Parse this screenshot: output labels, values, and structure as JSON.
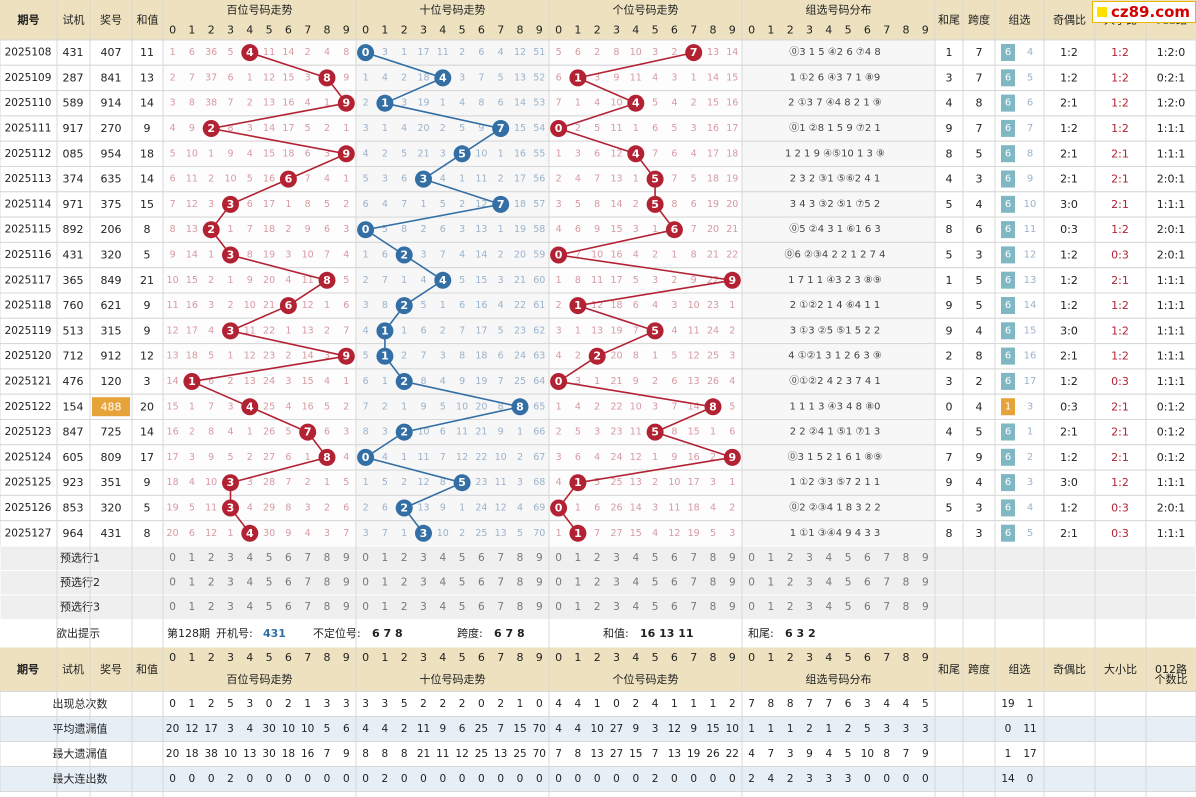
{
  "colors": {
    "red": "#b22233",
    "blue": "#336fa5",
    "hdr": "#ede1bf",
    "bdr": "#d8d8d8",
    "orange": "#e6a33a",
    "teal": "#7fb7c2",
    "gray": "#e9e9e9"
  },
  "watermark": "cz89.com",
  "headers": {
    "period": "期号",
    "trial": "试机",
    "prize": "奖号",
    "sum": "和值",
    "hundreds": "百位号码走势",
    "tens": "十位号码走势",
    "units": "个位号码走势",
    "group_dist": "组选号码分布",
    "sum_tail": "和尾",
    "span": "跨度",
    "group": "组选",
    "odd_even": "奇偶比",
    "big_small": "大小比",
    "r012": "012路",
    "r012b": "个数比"
  },
  "digits": [
    "0",
    "1",
    "2",
    "3",
    "4",
    "5",
    "6",
    "7",
    "8",
    "9"
  ],
  "rows": [
    {
      "p": "2025108",
      "t": "431",
      "n": "407",
      "s": "11",
      "h": [
        1,
        6,
        36,
        5,
        null,
        11,
        14,
        2,
        4,
        8
      ],
      "te": [
        null,
        3,
        1,
        17,
        11,
        2,
        6,
        4,
        12,
        51
      ],
      "u": [
        5,
        6,
        2,
        8,
        10,
        3,
        2,
        null,
        13,
        14
      ],
      "g": "⓪3 1 5 ④2 6 ⑦4 8",
      "st": "1",
      "sp": "7",
      "gc": "6",
      "gv": "4",
      "oe": "1:2",
      "bs": "1:2",
      "r": "1:2:0"
    },
    {
      "p": "2025109",
      "t": "287",
      "n": "841",
      "s": "13",
      "h": [
        2,
        7,
        37,
        6,
        1,
        12,
        15,
        3,
        null,
        9
      ],
      "te": [
        1,
        4,
        2,
        18,
        12,
        3,
        7,
        5,
        13,
        52
      ],
      "u": [
        6,
        null,
        3,
        9,
        11,
        4,
        3,
        1,
        14,
        15
      ],
      "g": "1 ①2 6 ④3 7 1 ⑧9",
      "st": "3",
      "sp": "7",
      "gc": "6",
      "gv": "5",
      "oe": "1:2",
      "bs": "1:2",
      "r": "0:2:1"
    },
    {
      "p": "2025110",
      "t": "589",
      "n": "914",
      "s": "14",
      "h": [
        3,
        8,
        38,
        7,
        2,
        13,
        16,
        4,
        1,
        null
      ],
      "te": [
        2,
        null,
        3,
        19,
        1,
        4,
        8,
        6,
        14,
        53
      ],
      "u": [
        7,
        1,
        4,
        10,
        null,
        5,
        4,
        2,
        15,
        16
      ],
      "g": "2 ①3 7 ④4 8 2 1 ⑨",
      "st": "4",
      "sp": "8",
      "gc": "6",
      "gv": "6",
      "oe": "2:1",
      "bs": "1:2",
      "r": "1:2:0"
    },
    {
      "p": "2025111",
      "t": "917",
      "n": "270",
      "s": "9",
      "h": [
        4,
        9,
        null,
        8,
        3,
        14,
        17,
        5,
        2,
        1
      ],
      "te": [
        3,
        1,
        4,
        20,
        2,
        5,
        9,
        null,
        15,
        54
      ],
      "u": [
        null,
        2,
        5,
        11,
        1,
        6,
        5,
        3,
        16,
        17
      ],
      "g": "⓪1 ②8 1 5 9 ⑦2 1",
      "st": "9",
      "sp": "7",
      "gc": "6",
      "gv": "7",
      "oe": "1:2",
      "bs": "1:2",
      "r": "1:1:1"
    },
    {
      "p": "2025112",
      "t": "085",
      "n": "954",
      "s": "18",
      "h": [
        5,
        10,
        1,
        9,
        4,
        15,
        18,
        6,
        3,
        null
      ],
      "te": [
        4,
        2,
        5,
        21,
        3,
        null,
        10,
        1,
        16,
        55
      ],
      "u": [
        1,
        3,
        6,
        12,
        null,
        7,
        6,
        4,
        17,
        18
      ],
      "g": "1 2 1 9 ④⑤10 1 3 ⑨",
      "st": "8",
      "sp": "5",
      "gc": "6",
      "gv": "8",
      "oe": "2:1",
      "bs": "2:1",
      "r": "1:1:1"
    },
    {
      "p": "2025113",
      "t": "374",
      "n": "635",
      "s": "14",
      "h": [
        6,
        11,
        2,
        10,
        5,
        16,
        null,
        7,
        4,
        1
      ],
      "te": [
        5,
        3,
        6,
        null,
        4,
        1,
        11,
        2,
        17,
        56
      ],
      "u": [
        2,
        4,
        7,
        13,
        1,
        null,
        7,
        5,
        18,
        19
      ],
      "g": "2 3 2 ③1 ⑤⑥2 4 1",
      "st": "4",
      "sp": "3",
      "gc": "6",
      "gv": "9",
      "oe": "2:1",
      "bs": "2:1",
      "r": "2:0:1"
    },
    {
      "p": "2025114",
      "t": "971",
      "n": "375",
      "s": "15",
      "h": [
        7,
        12,
        3,
        null,
        6,
        17,
        1,
        8,
        5,
        2
      ],
      "te": [
        6,
        4,
        7,
        1,
        5,
        2,
        12,
        null,
        18,
        57
      ],
      "u": [
        3,
        5,
        8,
        14,
        2,
        null,
        8,
        6,
        19,
        20
      ],
      "g": "3 4 3 ③2 ⑤1 ⑦5 2",
      "st": "5",
      "sp": "4",
      "gc": "6",
      "gv": "10",
      "oe": "3:0",
      "bs": "2:1",
      "r": "1:1:1"
    },
    {
      "p": "2025115",
      "t": "892",
      "n": "206",
      "s": "8",
      "h": [
        8,
        13,
        null,
        1,
        7,
        18,
        2,
        9,
        6,
        3
      ],
      "te": [
        null,
        5,
        8,
        2,
        6,
        3,
        13,
        1,
        19,
        58
      ],
      "u": [
        4,
        6,
        9,
        15,
        3,
        1,
        null,
        7,
        20,
        21
      ],
      "g": "⓪5 ②4 3 1 ⑥1 6 3",
      "st": "8",
      "sp": "6",
      "gc": "6",
      "gv": "11",
      "oe": "0:3",
      "bs": "1:2",
      "r": "2:0:1"
    },
    {
      "p": "2025116",
      "t": "431",
      "n": "320",
      "s": "5",
      "h": [
        9,
        14,
        1,
        null,
        8,
        19,
        3,
        10,
        7,
        4
      ],
      "te": [
        1,
        6,
        null,
        3,
        7,
        4,
        14,
        2,
        20,
        59
      ],
      "u": [
        null,
        7,
        10,
        16,
        4,
        2,
        1,
        8,
        21,
        22
      ],
      "g": "⓪6 ②③4 2 2 1 2 7 4",
      "st": "5",
      "sp": "3",
      "gc": "6",
      "gv": "12",
      "oe": "1:2",
      "bs": "0:3",
      "r": "2:0:1"
    },
    {
      "p": "2025117",
      "t": "365",
      "n": "849",
      "s": "21",
      "h": [
        10,
        15,
        2,
        1,
        9,
        20,
        4,
        11,
        null,
        5
      ],
      "te": [
        2,
        7,
        1,
        4,
        null,
        5,
        15,
        3,
        21,
        60
      ],
      "u": [
        1,
        8,
        11,
        17,
        5,
        3,
        2,
        9,
        22,
        null
      ],
      "g": "1 7 1 1 ④3 2 3 ⑧⑨",
      "st": "1",
      "sp": "5",
      "gc": "6",
      "gv": "13",
      "oe": "1:2",
      "bs": "2:1",
      "r": "1:1:1"
    },
    {
      "p": "2025118",
      "t": "760",
      "n": "621",
      "s": "9",
      "h": [
        11,
        16,
        3,
        2,
        10,
        21,
        null,
        12,
        1,
        6
      ],
      "te": [
        3,
        8,
        null,
        5,
        1,
        6,
        16,
        4,
        22,
        61
      ],
      "u": [
        2,
        null,
        12,
        18,
        6,
        4,
        3,
        10,
        23,
        1
      ],
      "g": "2 ①②2 1 4 ⑥4 1 1",
      "st": "9",
      "sp": "5",
      "gc": "6",
      "gv": "14",
      "oe": "1:2",
      "bs": "1:2",
      "r": "1:1:1"
    },
    {
      "p": "2025119",
      "t": "513",
      "n": "315",
      "s": "9",
      "h": [
        12,
        17,
        4,
        null,
        11,
        22,
        1,
        13,
        2,
        7
      ],
      "te": [
        4,
        null,
        1,
        6,
        2,
        7,
        17,
        5,
        23,
        62
      ],
      "u": [
        3,
        1,
        13,
        19,
        7,
        null,
        4,
        11,
        24,
        2
      ],
      "g": "3 ①3 ②5 ⑤1 5 2 2",
      "st": "9",
      "sp": "4",
      "gc": "6",
      "gv": "15",
      "oe": "3:0",
      "bs": "1:2",
      "r": "1:1:1"
    },
    {
      "p": "2025120",
      "t": "712",
      "n": "912",
      "s": "12",
      "h": [
        13,
        18,
        5,
        1,
        12,
        23,
        2,
        14,
        3,
        null
      ],
      "te": [
        5,
        null,
        2,
        7,
        3,
        8,
        18,
        6,
        24,
        63
      ],
      "u": [
        4,
        2,
        null,
        20,
        8,
        1,
        5,
        12,
        25,
        3
      ],
      "g": "4 ①②1 3 1 2 6 3 ⑨",
      "st": "2",
      "sp": "8",
      "gc": "6",
      "gv": "16",
      "oe": "2:1",
      "bs": "1:2",
      "r": "1:1:1"
    },
    {
      "p": "2025121",
      "t": "476",
      "n": "120",
      "s": "3",
      "h": [
        14,
        null,
        6,
        2,
        13,
        24,
        3,
        15,
        4,
        1
      ],
      "te": [
        6,
        1,
        null,
        8,
        4,
        9,
        19,
        7,
        25,
        64
      ],
      "u": [
        null,
        3,
        1,
        21,
        9,
        2,
        6,
        13,
        26,
        4
      ],
      "g": "⓪①②2 4 2 3 7 4 1",
      "st": "3",
      "sp": "2",
      "gc": "6",
      "gv": "17",
      "oe": "1:2",
      "bs": "0:3",
      "r": "1:1:1"
    },
    {
      "p": "2025122",
      "t": "154",
      "n": "488",
      "s": "20",
      "h": [
        15,
        1,
        7,
        3,
        null,
        25,
        4,
        16,
        5,
        2
      ],
      "te": [
        7,
        2,
        1,
        9,
        5,
        10,
        20,
        8,
        null,
        65
      ],
      "u": [
        1,
        4,
        2,
        22,
        10,
        3,
        7,
        14,
        null,
        5
      ],
      "g": "1 1 1 3 ④3 4 8 ⑧0",
      "st": "0",
      "sp": "4",
      "gc": "1",
      "gv": "3",
      "oe": "0:3",
      "bs": "2:1",
      "r": "0:1:2",
      "hl": true
    },
    {
      "p": "2025123",
      "t": "847",
      "n": "725",
      "s": "14",
      "h": [
        16,
        2,
        8,
        4,
        1,
        26,
        5,
        null,
        6,
        3
      ],
      "te": [
        8,
        3,
        null,
        10,
        6,
        11,
        21,
        9,
        1,
        66
      ],
      "u": [
        2,
        5,
        3,
        23,
        11,
        null,
        8,
        15,
        1,
        6
      ],
      "g": "2 2 ②4 1 ⑤1 ⑦1 3",
      "st": "4",
      "sp": "5",
      "gc": "6",
      "gv": "1",
      "oe": "2:1",
      "bs": "2:1",
      "r": "0:1:2"
    },
    {
      "p": "2025124",
      "t": "605",
      "n": "809",
      "s": "17",
      "h": [
        17,
        3,
        9,
        5,
        2,
        27,
        6,
        1,
        null,
        4
      ],
      "te": [
        null,
        4,
        1,
        11,
        7,
        12,
        22,
        10,
        2,
        67
      ],
      "u": [
        3,
        6,
        4,
        24,
        12,
        1,
        9,
        16,
        2,
        null
      ],
      "g": "⓪3 1 5 2 1 6 1 ⑧⑨",
      "st": "7",
      "sp": "9",
      "gc": "6",
      "gv": "2",
      "oe": "1:2",
      "bs": "2:1",
      "r": "0:1:2"
    },
    {
      "p": "2025125",
      "t": "923",
      "n": "351",
      "s": "9",
      "h": [
        18,
        4,
        10,
        null,
        3,
        28,
        7,
        2,
        1,
        5
      ],
      "te": [
        1,
        5,
        2,
        12,
        8,
        null,
        23,
        11,
        3,
        68
      ],
      "u": [
        4,
        null,
        5,
        25,
        13,
        2,
        10,
        17,
        3,
        1
      ],
      "g": "1 ①2 ③3 ⑤7 2 1 1",
      "st": "9",
      "sp": "4",
      "gc": "6",
      "gv": "3",
      "oe": "3:0",
      "bs": "1:2",
      "r": "1:1:1"
    },
    {
      "p": "2025126",
      "t": "853",
      "n": "320",
      "s": "5",
      "h": [
        19,
        5,
        11,
        null,
        4,
        29,
        8,
        3,
        2,
        6
      ],
      "te": [
        2,
        6,
        null,
        13,
        9,
        1,
        24,
        12,
        4,
        69
      ],
      "u": [
        null,
        1,
        6,
        26,
        14,
        3,
        11,
        18,
        4,
        2
      ],
      "g": "⓪2 ②③4 1 8 3 2 2",
      "st": "5",
      "sp": "3",
      "gc": "6",
      "gv": "4",
      "oe": "1:2",
      "bs": "0:3",
      "r": "2:0:1"
    },
    {
      "p": "2025127",
      "t": "964",
      "n": "431",
      "s": "8",
      "h": [
        20,
        6,
        12,
        1,
        null,
        30,
        9,
        4,
        3,
        7
      ],
      "te": [
        3,
        7,
        1,
        null,
        10,
        2,
        25,
        13,
        5,
        70
      ],
      "u": [
        1,
        null,
        7,
        27,
        15,
        4,
        12,
        19,
        5,
        3
      ],
      "g": "1 ①1 ③④4 9 4 3 3",
      "st": "8",
      "sp": "3",
      "gc": "6",
      "gv": "5",
      "oe": "2:1",
      "bs": "0:3",
      "r": "1:1:1"
    }
  ],
  "pre_rows": [
    "预选行1",
    "预选行2",
    "预选行3"
  ],
  "hint": {
    "label": "欲出提示",
    "period": "第128期",
    "trial_label": "开机号:",
    "trial": "431",
    "unfixed_label": "不定位号:",
    "unfixed": "6 7 8",
    "span_label": "跨度:",
    "span": "6 7 8",
    "sum_label": "和值:",
    "sum": "16 13 11",
    "tail_label": "和尾:",
    "tail": "6 3 2"
  },
  "stats": [
    {
      "label": "出现总次数",
      "v": [
        0,
        1,
        2,
        5,
        3,
        0,
        2,
        1,
        3,
        3,
        3,
        3,
        5,
        2,
        2,
        2,
        0,
        2,
        1,
        0,
        4,
        4,
        1,
        0,
        2,
        4,
        1,
        1,
        1,
        2,
        7,
        8,
        8,
        7,
        7,
        6,
        3,
        4,
        4,
        5
      ],
      "g": [
        "19",
        "1"
      ]
    },
    {
      "label": "平均遗漏值",
      "v": [
        20,
        12,
        17,
        3,
        4,
        30,
        10,
        10,
        5,
        6,
        4,
        4,
        2,
        11,
        9,
        6,
        25,
        7,
        15,
        70,
        4,
        4,
        10,
        27,
        9,
        3,
        12,
        9,
        15,
        10,
        1,
        1,
        1,
        2,
        1,
        2,
        5,
        3,
        3,
        3
      ],
      "g": [
        "0",
        "11"
      ]
    },
    {
      "label": "最大遗漏值",
      "v": [
        20,
        18,
        38,
        10,
        13,
        30,
        18,
        16,
        7,
        9,
        8,
        8,
        8,
        21,
        11,
        12,
        25,
        13,
        25,
        70,
        7,
        8,
        13,
        27,
        15,
        7,
        13,
        19,
        26,
        22,
        4,
        7,
        3,
        9,
        4,
        5,
        10,
        8,
        7,
        9
      ],
      "g": [
        "1",
        "17"
      ]
    },
    {
      "label": "最大连出数",
      "v": [
        0,
        0,
        0,
        2,
        0,
        0,
        0,
        0,
        0,
        0,
        0,
        2,
        0,
        0,
        0,
        0,
        0,
        0,
        0,
        0,
        0,
        0,
        0,
        0,
        0,
        2,
        0,
        0,
        0,
        0,
        2,
        4,
        2,
        3,
        3,
        3,
        0,
        0,
        0,
        0
      ],
      "g": [
        "14",
        "0"
      ]
    }
  ],
  "chart_data": {
    "type": "line",
    "categories": [
      "2025108",
      "2025109",
      "2025110",
      "2025111",
      "2025112",
      "2025113",
      "2025114",
      "2025115",
      "2025116",
      "2025117",
      "2025118",
      "2025119",
      "2025120",
      "2025121",
      "2025122",
      "2025123",
      "2025124",
      "2025125",
      "2025126",
      "2025127"
    ],
    "series": [
      {
        "name": "百位号码走势",
        "values": [
          4,
          8,
          9,
          2,
          9,
          6,
          3,
          2,
          3,
          8,
          6,
          3,
          9,
          1,
          4,
          7,
          8,
          3,
          3,
          4
        ]
      },
      {
        "name": "十位号码走势",
        "values": [
          0,
          4,
          1,
          7,
          5,
          3,
          7,
          0,
          2,
          4,
          2,
          1,
          1,
          2,
          8,
          2,
          0,
          5,
          2,
          3
        ]
      },
      {
        "name": "个位号码走势",
        "values": [
          7,
          1,
          4,
          0,
          4,
          5,
          5,
          6,
          0,
          9,
          1,
          5,
          2,
          0,
          8,
          5,
          9,
          1,
          0,
          1
        ]
      }
    ],
    "ylim": [
      0,
      9
    ]
  }
}
